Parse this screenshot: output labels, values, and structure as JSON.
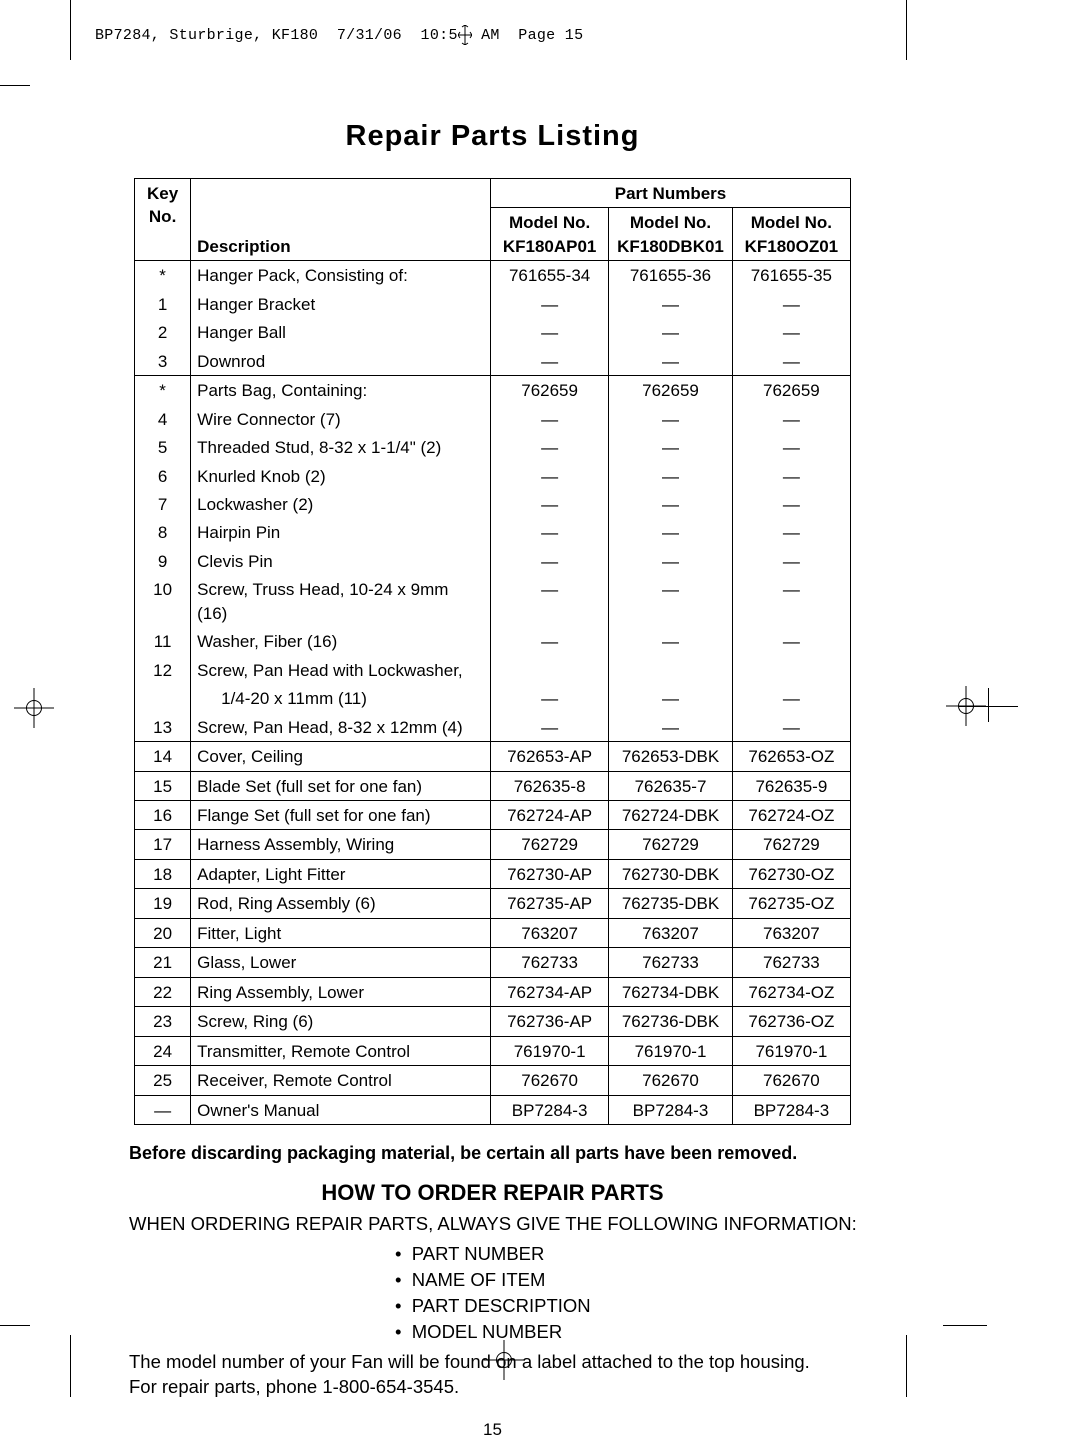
{
  "header_line": "BP7284, Sturbrige, KF180  7/31/06  10:52 AM  Page 15",
  "page_title": "Repair Parts Listing",
  "table": {
    "superheader": "Part Numbers",
    "columns": {
      "key": [
        "Key",
        "No."
      ],
      "desc": "Description",
      "m1": [
        "Model No.",
        "KF180AP01"
      ],
      "m2": [
        "Model No.",
        "KF180DBK01"
      ],
      "m3": [
        "Model No.",
        "KF180OZ01"
      ]
    },
    "groups": [
      {
        "rows": [
          {
            "k": "*",
            "d": "Hanger Pack, Consisting of:",
            "p": [
              "761655-34",
              "761655-36",
              "761655-35"
            ]
          },
          {
            "k": "1",
            "d": "Hanger Bracket",
            "p": [
              "—",
              "—",
              "—"
            ]
          },
          {
            "k": "2",
            "d": "Hanger Ball",
            "p": [
              "—",
              "—",
              "—"
            ]
          },
          {
            "k": "3",
            "d": "Downrod",
            "p": [
              "—",
              "—",
              "—"
            ]
          }
        ]
      },
      {
        "rows": [
          {
            "k": "*",
            "d": "Parts Bag, Containing:",
            "p": [
              "762659",
              "762659",
              "762659"
            ]
          },
          {
            "k": "4",
            "d": "Wire Connector (7)",
            "p": [
              "—",
              "—",
              "—"
            ]
          },
          {
            "k": "5",
            "d": "Threaded Stud, 8-32 x 1-1/4\" (2)",
            "p": [
              "—",
              "—",
              "—"
            ]
          },
          {
            "k": "6",
            "d": "Knurled Knob (2)",
            "p": [
              "—",
              "—",
              "—"
            ]
          },
          {
            "k": "7",
            "d": "Lockwasher (2)",
            "p": [
              "—",
              "—",
              "—"
            ]
          },
          {
            "k": "8",
            "d": "Hairpin Pin",
            "p": [
              "—",
              "—",
              "—"
            ]
          },
          {
            "k": "9",
            "d": "Clevis Pin",
            "p": [
              "—",
              "—",
              "—"
            ]
          },
          {
            "k": "10",
            "d": "Screw, Truss Head, 10-24 x 9mm (16)",
            "p": [
              "—",
              "—",
              "—"
            ]
          },
          {
            "k": "11",
            "d": "Washer, Fiber (16)",
            "p": [
              "—",
              "—",
              "—"
            ]
          },
          {
            "k": "12",
            "d": "Screw, Pan Head with Lockwasher,",
            "p": [
              "",
              "",
              ""
            ]
          },
          {
            "k": "",
            "d": "1/4-20 x 11mm (11)",
            "p": [
              "—",
              "—",
              "—"
            ],
            "indent": true
          },
          {
            "k": "13",
            "d": "Screw, Pan Head, 8-32 x 12mm (4)",
            "p": [
              "—",
              "—",
              "—"
            ]
          }
        ]
      },
      {
        "rows": [
          {
            "k": "14",
            "d": "Cover, Ceiling",
            "p": [
              "762653-AP",
              "762653-DBK",
              "762653-OZ"
            ]
          }
        ]
      },
      {
        "rows": [
          {
            "k": "15",
            "d": "Blade Set (full set for one fan)",
            "p": [
              "762635-8",
              "762635-7",
              "762635-9"
            ]
          }
        ]
      },
      {
        "rows": [
          {
            "k": "16",
            "d": "Flange Set (full set for one fan)",
            "p": [
              "762724-AP",
              "762724-DBK",
              "762724-OZ"
            ]
          }
        ]
      },
      {
        "rows": [
          {
            "k": "17",
            "d": "Harness Assembly, Wiring",
            "p": [
              "762729",
              "762729",
              "762729"
            ]
          }
        ]
      },
      {
        "rows": [
          {
            "k": "18",
            "d": "Adapter, Light Fitter",
            "p": [
              "762730-AP",
              "762730-DBK",
              "762730-OZ"
            ]
          }
        ]
      },
      {
        "rows": [
          {
            "k": "19",
            "d": "Rod, Ring Assembly (6)",
            "p": [
              "762735-AP",
              "762735-DBK",
              "762735-OZ"
            ]
          }
        ]
      },
      {
        "rows": [
          {
            "k": "20",
            "d": "Fitter, Light",
            "p": [
              "763207",
              "763207",
              "763207"
            ]
          }
        ]
      },
      {
        "rows": [
          {
            "k": "21",
            "d": "Glass, Lower",
            "p": [
              "762733",
              "762733",
              "762733"
            ]
          }
        ]
      },
      {
        "rows": [
          {
            "k": "22",
            "d": "Ring Assembly, Lower",
            "p": [
              "762734-AP",
              "762734-DBK",
              "762734-OZ"
            ]
          }
        ]
      },
      {
        "rows": [
          {
            "k": "23",
            "d": "Screw, Ring (6)",
            "p": [
              "762736-AP",
              "762736-DBK",
              "762736-OZ"
            ]
          }
        ]
      },
      {
        "rows": [
          {
            "k": "24",
            "d": "Transmitter, Remote Control",
            "p": [
              "761970-1",
              "761970-1",
              "761970-1"
            ]
          }
        ]
      },
      {
        "rows": [
          {
            "k": "25",
            "d": "Receiver, Remote Control",
            "p": [
              "762670",
              "762670",
              "762670"
            ]
          }
        ]
      },
      {
        "rows": [
          {
            "k": "—",
            "d": "Owner's Manual",
            "p": [
              "BP7284-3",
              "BP7284-3",
              "BP7284-3"
            ]
          }
        ]
      }
    ]
  },
  "note": "Before discarding packaging material, be certain all parts have been removed.",
  "order_title": "HOW TO ORDER REPAIR PARTS",
  "order_intro": "WHEN ORDERING REPAIR PARTS, ALWAYS GIVE THE FOLLOWING INFORMATION:",
  "order_items": [
    "PART NUMBER",
    "NAME OF ITEM",
    "PART DESCRIPTION",
    "MODEL NUMBER"
  ],
  "order_outro1": "The model number of your Fan will be found on a label attached to the top housing.",
  "order_outro2": "For repair parts, phone 1-800-654-3545.",
  "page_number": "15"
}
